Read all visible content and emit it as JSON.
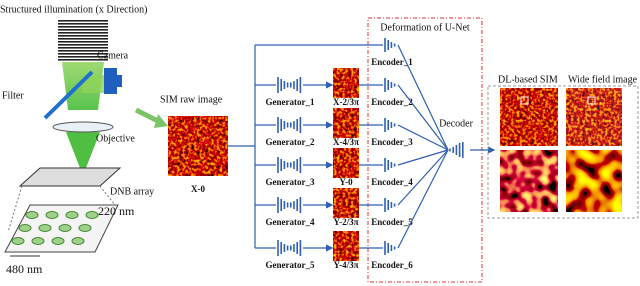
{
  "header": {
    "illumination": "Structured illumination (x Direction)"
  },
  "optics": {
    "camera": "Camera",
    "filter": "Filter",
    "objective": "Objective",
    "array": "DNB array",
    "spacing_y": "220 nm",
    "spacing_x": "480 nm"
  },
  "input": {
    "title": "SIM raw image",
    "label": "X-0"
  },
  "generators": [
    {
      "label": "Generator_1",
      "output": "X-2/3π"
    },
    {
      "label": "Generator_2",
      "output": "X-4/3π"
    },
    {
      "label": "Generator_3",
      "output": "Y-0"
    },
    {
      "label": "Generator_4",
      "output": "Y-2/3π"
    },
    {
      "label": "Generator_5",
      "output": "Y-4/3π"
    }
  ],
  "unet": {
    "title": "Deformation of U-Net",
    "encoders": [
      "Encoder_1",
      "Encoder_2",
      "Encoder_3",
      "Encoder_4",
      "Encoder_5",
      "Encoder_6"
    ],
    "decoder": "Decoder"
  },
  "output": {
    "sim": "DL-based SIM",
    "widefield": "Wide field image"
  }
}
